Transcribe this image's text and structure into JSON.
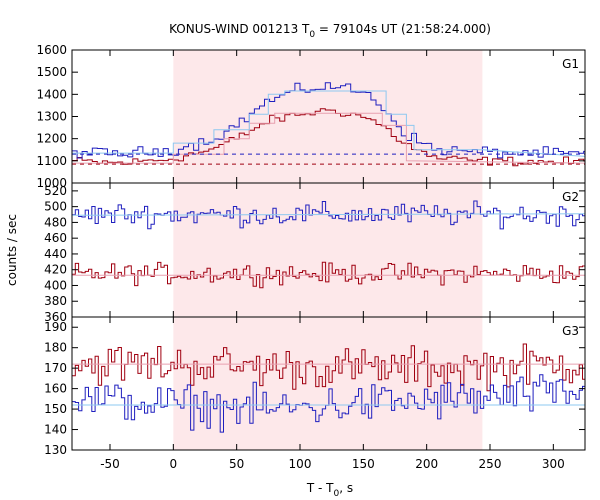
{
  "chart_data": {
    "type": "line",
    "title_main": "KONUS-WIND 001213 T",
    "title_sub": "0",
    "title_rest": " = 79104s UT (21:58:24.000)",
    "xlabel_main": "T - T",
    "xlabel_sub": "0",
    "xlabel_rest": ", s",
    "ylabel": "counts / sec",
    "xlim": [
      -80,
      325
    ],
    "xticks": [
      -50,
      0,
      50,
      100,
      150,
      200,
      250,
      300
    ],
    "highlight_interval": [
      0,
      244
    ],
    "colors": {
      "blue": "#1f1fbf",
      "red": "#a00010",
      "fit": "#8ec8f0",
      "fit_red": "#e8a0b0",
      "highlight": "#fde8ea"
    },
    "panels": [
      {
        "label": "G1",
        "ylim": [
          1000,
          1600
        ],
        "yticks": [
          1000,
          1100,
          1200,
          1300,
          1400,
          1500,
          1600
        ],
        "bin_width": 4,
        "blue_trend": [
          [
            -80,
            1140
          ],
          [
            -40,
            1130
          ],
          [
            0,
            1150
          ],
          [
            30,
            1195
          ],
          [
            50,
            1260
          ],
          [
            75,
            1370
          ],
          [
            100,
            1420
          ],
          [
            125,
            1440
          ],
          [
            150,
            1410
          ],
          [
            165,
            1350
          ],
          [
            180,
            1240
          ],
          [
            195,
            1180
          ],
          [
            210,
            1150
          ],
          [
            240,
            1140
          ],
          [
            325,
            1130
          ]
        ],
        "red_trend": [
          [
            -80,
            1100
          ],
          [
            -40,
            1090
          ],
          [
            0,
            1110
          ],
          [
            30,
            1150
          ],
          [
            50,
            1200
          ],
          [
            75,
            1280
          ],
          [
            100,
            1310
          ],
          [
            125,
            1330
          ],
          [
            150,
            1300
          ],
          [
            165,
            1260
          ],
          [
            180,
            1190
          ],
          [
            195,
            1140
          ],
          [
            210,
            1110
          ],
          [
            240,
            1100
          ],
          [
            325,
            1095
          ]
        ],
        "blue_noise": 18,
        "red_noise": 14,
        "blue_fit": [
          [
            -80,
            1135
          ],
          [
            0,
            1135
          ],
          [
            0,
            1180
          ],
          [
            32,
            1180
          ],
          [
            32,
            1240
          ],
          [
            60,
            1240
          ],
          [
            60,
            1310
          ],
          [
            75,
            1310
          ],
          [
            75,
            1400
          ],
          [
            88,
            1400
          ],
          [
            88,
            1415
          ],
          [
            168,
            1415
          ],
          [
            168,
            1310
          ],
          [
            184,
            1310
          ],
          [
            184,
            1260
          ],
          [
            190,
            1260
          ],
          [
            190,
            1150
          ],
          [
            244,
            1150
          ],
          [
            325,
            1120
          ]
        ],
        "red_fit": [
          [
            -80,
            1090
          ],
          [
            0,
            1090
          ],
          [
            0,
            1130
          ],
          [
            40,
            1130
          ],
          [
            40,
            1200
          ],
          [
            60,
            1200
          ],
          [
            60,
            1270
          ],
          [
            80,
            1270
          ],
          [
            80,
            1315
          ],
          [
            165,
            1315
          ],
          [
            165,
            1260
          ],
          [
            184,
            1260
          ],
          [
            184,
            1100
          ],
          [
            325,
            1090
          ]
        ],
        "dashed_blue": 1130,
        "dashed_red": 1085
      },
      {
        "label": "G2",
        "ylim": [
          360,
          530
        ],
        "yticks": [
          360,
          380,
          400,
          420,
          440,
          460,
          480,
          500,
          520
        ],
        "bin_width": 2.6,
        "blue_trend": [
          [
            -80,
            490
          ],
          [
            325,
            490
          ]
        ],
        "red_trend": [
          [
            -80,
            415
          ],
          [
            325,
            415
          ]
        ],
        "blue_noise": 10,
        "red_noise": 9,
        "blue_fit": [
          [
            -80,
            489
          ],
          [
            325,
            491
          ]
        ],
        "red_fit": [
          [
            -80,
            413
          ],
          [
            325,
            413
          ]
        ]
      },
      {
        "label": "G3",
        "ylim": [
          130,
          195
        ],
        "yticks": [
          130,
          140,
          150,
          160,
          170,
          180,
          190
        ],
        "bin_width": 2.6,
        "blue_trend": [
          [
            -80,
            155
          ],
          [
            0,
            152
          ],
          [
            80,
            150
          ],
          [
            160,
            153
          ],
          [
            240,
            155
          ],
          [
            325,
            158
          ]
        ],
        "red_trend": [
          [
            -80,
            172
          ],
          [
            0,
            172
          ],
          [
            100,
            170
          ],
          [
            200,
            170
          ],
          [
            325,
            172
          ]
        ],
        "blue_noise": 7,
        "red_noise": 7,
        "blue_fit": [
          [
            -80,
            152
          ],
          [
            325,
            152
          ]
        ],
        "red_fit": [
          [
            -80,
            172
          ],
          [
            325,
            172
          ]
        ]
      }
    ]
  }
}
